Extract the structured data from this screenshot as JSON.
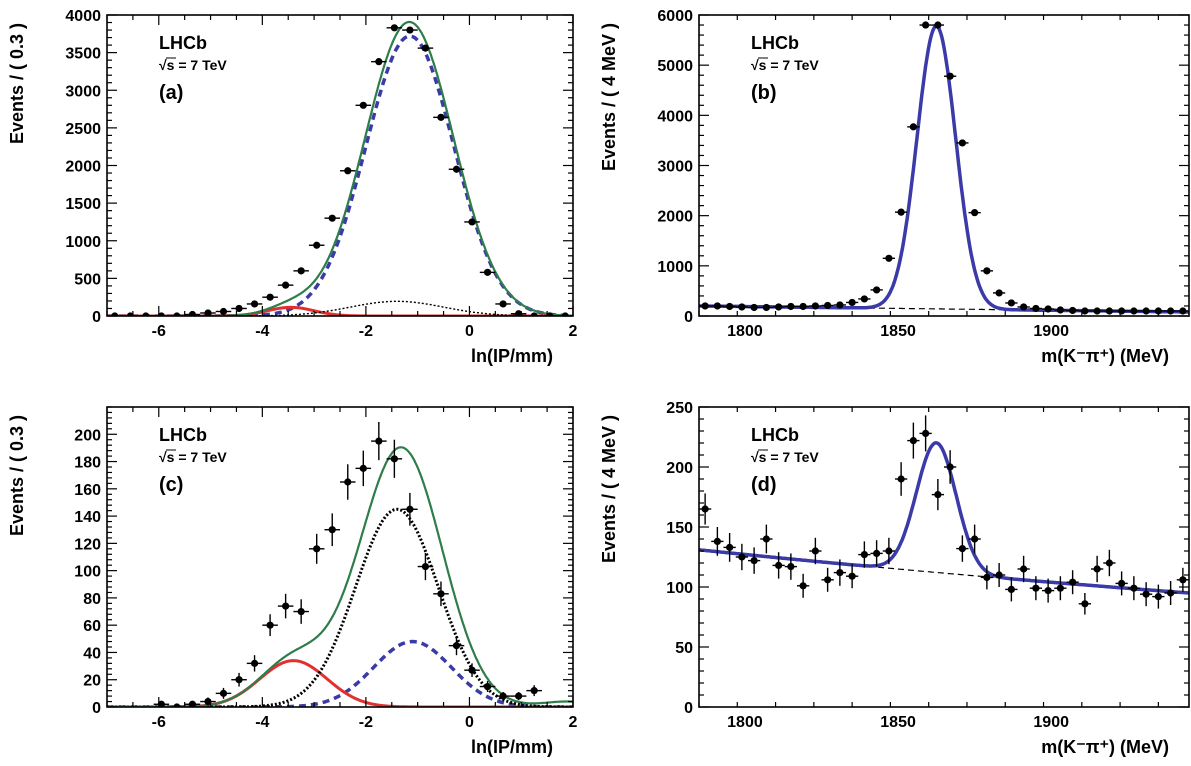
{
  "chart_data": [
    {
      "id": "a",
      "type": "line",
      "panel_label": "(a)",
      "experiment": "LHCb",
      "energy_label": "√s = 7 TeV",
      "xlabel": "ln(IP/mm)",
      "ylabel": "Events / ( 0.3 )",
      "xlim": [
        -7,
        2
      ],
      "ylim": [
        0,
        4000
      ],
      "xticks": [
        -6,
        -4,
        -2,
        0,
        2
      ],
      "yticks": [
        0,
        500,
        1000,
        1500,
        2000,
        2500,
        3000,
        3500,
        4000
      ],
      "colors": {
        "total": "#2e7d4a",
        "signal": "#3a3aa8",
        "secondary": "#e03030",
        "background": "#000000"
      },
      "components": [
        {
          "role": "signal",
          "style": "dashed",
          "shape": "gauss",
          "amp": 3720,
          "mu": -1.15,
          "sigma": 0.85
        },
        {
          "role": "secondary",
          "style": "solid",
          "shape": "gauss",
          "amp": 115,
          "mu": -3.45,
          "sigma": 0.45
        },
        {
          "role": "background",
          "style": "dotted",
          "shape": "gauss",
          "amp": 195,
          "mu": -1.4,
          "sigma": 0.9
        }
      ],
      "data_points": {
        "x": [
          -6.85,
          -6.55,
          -6.25,
          -5.95,
          -5.65,
          -5.35,
          -5.05,
          -4.75,
          -4.45,
          -4.15,
          -3.85,
          -3.55,
          -3.25,
          -2.95,
          -2.65,
          -2.35,
          -2.05,
          -1.75,
          -1.45,
          -1.15,
          -0.85,
          -0.55,
          -0.25,
          0.05,
          0.35,
          0.65,
          0.95,
          1.25,
          1.55,
          1.85
        ],
        "y": [
          0,
          0,
          0,
          0,
          0,
          20,
          40,
          60,
          100,
          160,
          250,
          410,
          600,
          940,
          1300,
          1930,
          2800,
          3380,
          3830,
          3800,
          3560,
          2640,
          1950,
          1250,
          580,
          160,
          30,
          0,
          0,
          0
        ],
        "xerr": 0.15
      }
    },
    {
      "id": "b",
      "type": "line",
      "panel_label": "(b)",
      "experiment": "LHCb",
      "energy_label": "√s = 7 TeV",
      "xlabel": "m(K⁻π⁺) (MeV)",
      "ylabel": "Events / ( 4 MeV )",
      "xlim": [
        1785,
        1945
      ],
      "ylim": [
        0,
        6000
      ],
      "xticks": [
        1800,
        1850,
        1900
      ],
      "yticks": [
        0,
        1000,
        2000,
        3000,
        4000,
        5000,
        6000
      ],
      "colors": {
        "total": "#3a3aa8",
        "background": "#000000"
      },
      "components": [
        {
          "role": "background",
          "style": "dashed",
          "shape": "linear",
          "y_at_xmin": 200,
          "y_at_xmax": 80
        },
        {
          "role": "signal",
          "style": "solid",
          "shape": "gauss",
          "amp": 5640,
          "mu": 1862.5,
          "sigma": 6.3
        }
      ],
      "data_points": {
        "x": [
          1787,
          1791,
          1795,
          1799,
          1803,
          1807,
          1811,
          1815,
          1819,
          1823,
          1827,
          1831,
          1835,
          1839,
          1843,
          1847,
          1851,
          1855,
          1859,
          1863,
          1867,
          1871,
          1875,
          1879,
          1883,
          1887,
          1891,
          1895,
          1899,
          1903,
          1907,
          1911,
          1915,
          1919,
          1923,
          1927,
          1931,
          1935,
          1939,
          1943
        ],
        "y": [
          200,
          200,
          190,
          180,
          170,
          170,
          180,
          190,
          190,
          200,
          210,
          220,
          270,
          340,
          520,
          1150,
          2070,
          3770,
          5800,
          5800,
          4780,
          3450,
          2060,
          900,
          460,
          260,
          180,
          150,
          140,
          120,
          110,
          100,
          100,
          100,
          100,
          100,
          100,
          100,
          100,
          100
        ],
        "xerr": 2
      }
    },
    {
      "id": "c",
      "type": "line",
      "panel_label": "(c)",
      "experiment": "LHCb",
      "energy_label": "√s = 7 TeV",
      "xlabel": "ln(IP/mm)",
      "ylabel": "Events / ( 0.3 )",
      "xlim": [
        -7,
        2
      ],
      "ylim": [
        0,
        220
      ],
      "xticks": [
        -6,
        -4,
        -2,
        0,
        2
      ],
      "yticks": [
        0,
        20,
        40,
        60,
        80,
        100,
        120,
        140,
        160,
        180,
        200
      ],
      "colors": {
        "total": "#2e7d4a",
        "signal": "#3a3aa8",
        "secondary": "#e03030",
        "background": "#000000"
      },
      "components": [
        {
          "role": "signal",
          "style": "dashed",
          "shape": "gauss",
          "amp": 48,
          "mu": -1.1,
          "sigma": 0.75
        },
        {
          "role": "secondary",
          "style": "solid",
          "shape": "gauss",
          "amp": 34,
          "mu": -3.4,
          "sigma": 0.65
        },
        {
          "role": "background",
          "style": "dotted",
          "shape": "gauss",
          "amp": 145,
          "mu": -1.4,
          "sigma": 0.8
        },
        {
          "role": "tail",
          "style": "none",
          "shape": "gauss",
          "amp": 4,
          "mu": 1.9,
          "sigma": 0.5
        }
      ],
      "data_points": {
        "x": [
          -5.95,
          -5.65,
          -5.35,
          -5.05,
          -4.75,
          -4.45,
          -4.15,
          -3.85,
          -3.55,
          -3.25,
          -2.95,
          -2.65,
          -2.35,
          -2.05,
          -1.75,
          -1.45,
          -1.15,
          -0.85,
          -0.55,
          -0.25,
          0.05,
          0.35,
          0.65,
          0.95,
          1.25
        ],
        "y": [
          2,
          0,
          2,
          4,
          10,
          20,
          32,
          60,
          74,
          70,
          116,
          130,
          165,
          175,
          195,
          182,
          145,
          103,
          83,
          45,
          27,
          15,
          8,
          8,
          12
        ],
        "yerr": [
          2,
          2,
          2,
          3,
          4,
          5,
          6,
          8,
          9,
          9,
          11,
          12,
          13,
          13,
          14,
          14,
          12,
          10,
          9,
          7,
          5,
          4,
          3,
          3,
          4
        ],
        "xerr": 0.15
      }
    },
    {
      "id": "d",
      "type": "line",
      "panel_label": "(d)",
      "experiment": "LHCb",
      "energy_label": "√s = 7 TeV",
      "xlabel": "m(K⁻π⁺) (MeV)",
      "ylabel": "Events / ( 4 MeV )",
      "xlim": [
        1785,
        1945
      ],
      "ylim": [
        0,
        250
      ],
      "xticks": [
        1800,
        1850,
        1900
      ],
      "yticks": [
        0,
        50,
        100,
        150,
        200,
        250
      ],
      "colors": {
        "total": "#3a3aa8",
        "background": "#000000"
      },
      "components": [
        {
          "role": "background",
          "style": "dashed",
          "shape": "exp",
          "y_at_xmin": 131,
          "y_at_xmax": 95
        },
        {
          "role": "signal",
          "style": "solid",
          "shape": "gauss",
          "amp": 108,
          "mu": 1862.5,
          "sigma": 6.5
        }
      ],
      "data_points": {
        "x": [
          1787,
          1791,
          1795,
          1799,
          1803,
          1807,
          1811,
          1815,
          1819,
          1823,
          1827,
          1831,
          1835,
          1839,
          1843,
          1847,
          1851,
          1855,
          1859,
          1863,
          1867,
          1871,
          1875,
          1879,
          1883,
          1887,
          1891,
          1895,
          1899,
          1903,
          1907,
          1911,
          1915,
          1919,
          1923,
          1927,
          1931,
          1935,
          1939,
          1943
        ],
        "y": [
          165,
          138,
          133,
          125,
          122,
          140,
          118,
          117,
          101,
          130,
          106,
          112,
          109,
          127,
          128,
          130,
          190,
          222,
          228,
          177,
          200,
          132,
          140,
          108,
          110,
          98,
          115,
          99,
          97,
          99,
          104,
          86,
          115,
          120,
          103,
          99,
          94,
          92,
          95,
          106
        ],
        "yerr": [
          13,
          12,
          12,
          11,
          11,
          12,
          11,
          11,
          10,
          11,
          10,
          11,
          10,
          11,
          11,
          11,
          14,
          15,
          15,
          13,
          14,
          11,
          12,
          10,
          10,
          10,
          11,
          10,
          10,
          10,
          10,
          9,
          11,
          11,
          10,
          10,
          10,
          10,
          10,
          10
        ],
        "xerr": 2
      }
    }
  ]
}
